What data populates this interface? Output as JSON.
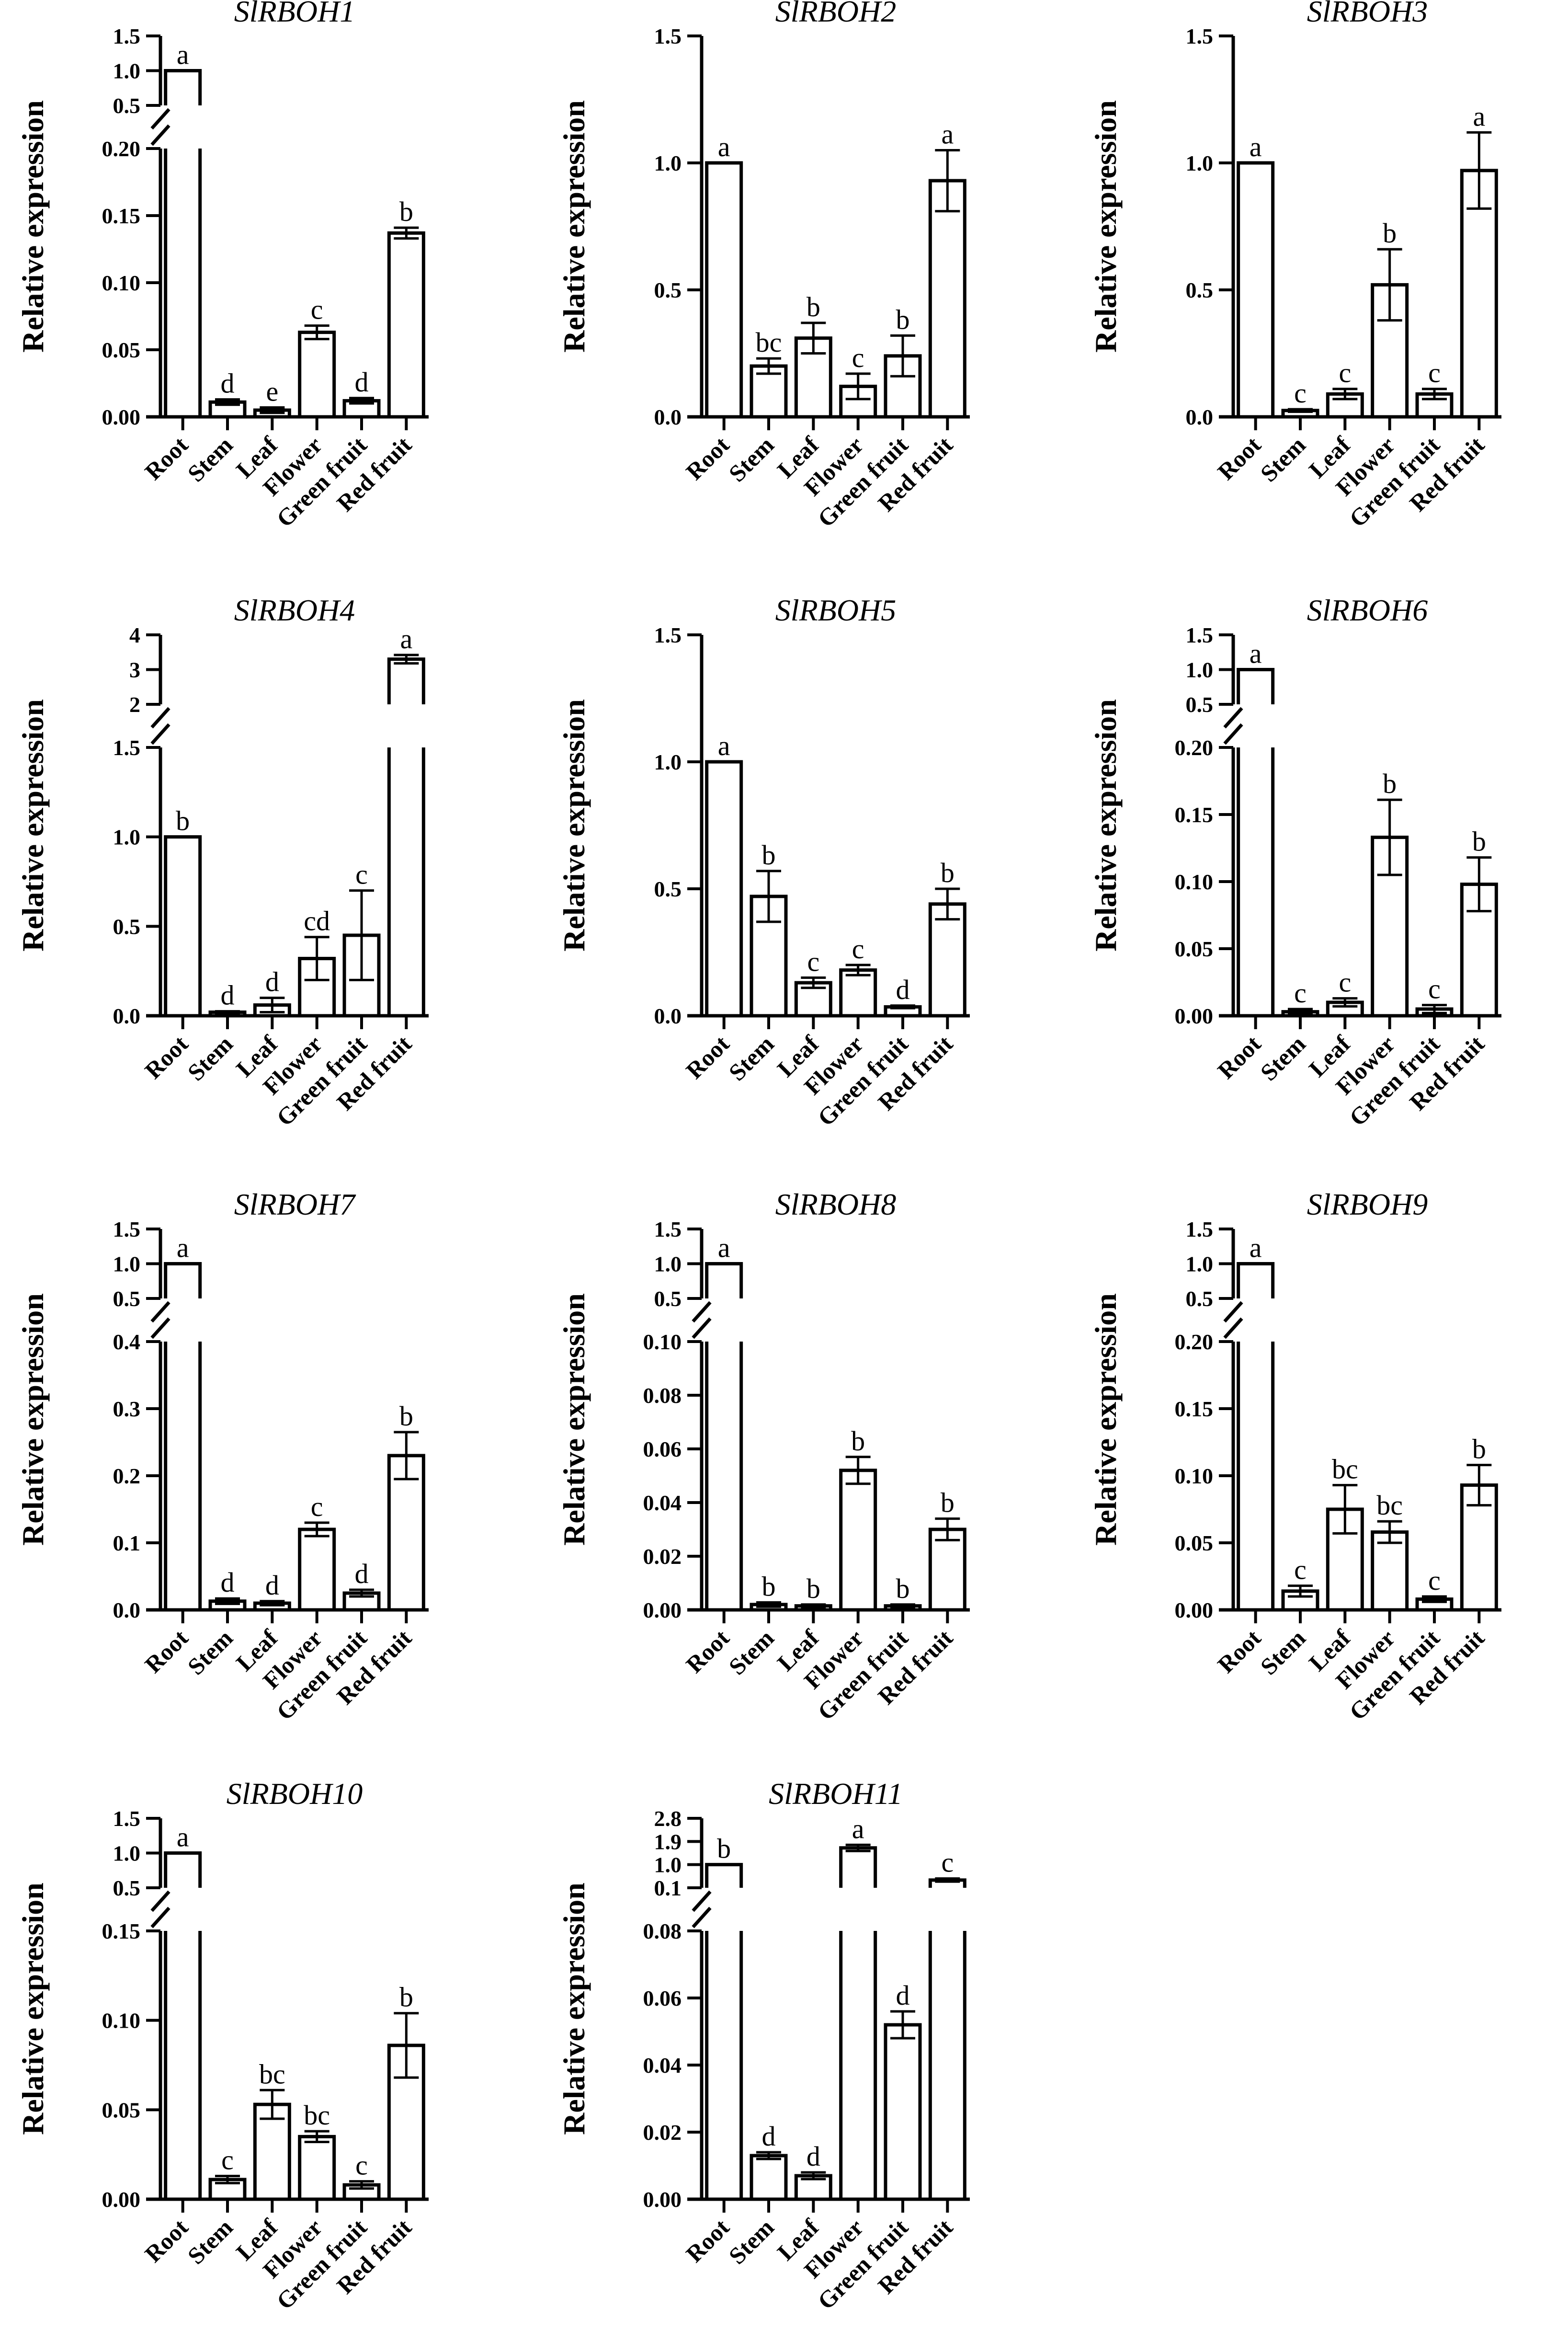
{
  "figure": {
    "ylabel": "Relative expression",
    "background": "#ffffff",
    "ink": "#000000"
  },
  "chart_data": [
    {
      "type": "bar",
      "title": "SlRBOH1",
      "ylabel": "Relative expression",
      "categories": [
        "Root",
        "Stem",
        "Leaf",
        "Flower",
        "Green fruit",
        "Red fruit"
      ],
      "values": [
        1.0,
        0.011,
        0.005,
        0.063,
        0.012,
        0.137
      ],
      "errors": [
        0.0,
        0.002,
        0.002,
        0.005,
        0.002,
        0.004
      ],
      "letters": [
        "a",
        "d",
        "e",
        "c",
        "d",
        "b"
      ],
      "axis_break": true,
      "lower": {
        "ylim": [
          0,
          0.2
        ],
        "ticks": [
          "0.00",
          "0.05",
          "0.10",
          "0.15",
          "0.20"
        ]
      },
      "upper": {
        "ylim": [
          0.5,
          1.5
        ],
        "ticks": [
          "0.5",
          "1.0",
          "1.5"
        ]
      }
    },
    {
      "type": "bar",
      "title": "SlRBOH2",
      "ylabel": "Relative expression",
      "categories": [
        "Root",
        "Stem",
        "Leaf",
        "Flower",
        "Green fruit",
        "Red fruit"
      ],
      "values": [
        1.0,
        0.2,
        0.31,
        0.12,
        0.24,
        0.93
      ],
      "errors": [
        0.0,
        0.03,
        0.06,
        0.05,
        0.08,
        0.12
      ],
      "letters": [
        "a",
        "bc",
        "b",
        "c",
        "b",
        "a"
      ],
      "axis_break": false,
      "ylim": [
        0,
        1.5
      ],
      "ticks": [
        "0.0",
        "0.5",
        "1.0",
        "1.5"
      ]
    },
    {
      "type": "bar",
      "title": "SlRBOH3",
      "ylabel": "Relative expression",
      "categories": [
        "Root",
        "Stem",
        "Leaf",
        "Flower",
        "Green fruit",
        "Red fruit"
      ],
      "values": [
        1.0,
        0.025,
        0.09,
        0.52,
        0.09,
        0.97
      ],
      "errors": [
        0.0,
        0.005,
        0.02,
        0.14,
        0.02,
        0.15
      ],
      "letters": [
        "a",
        "c",
        "c",
        "b",
        "c",
        "a"
      ],
      "axis_break": false,
      "ylim": [
        0,
        1.5
      ],
      "ticks": [
        "0.0",
        "0.5",
        "1.0",
        "1.5"
      ]
    },
    {
      "type": "bar",
      "title": "SlRBOH4",
      "ylabel": "Relative expression",
      "categories": [
        "Root",
        "Stem",
        "Leaf",
        "Flower",
        "Green fruit",
        "Red fruit"
      ],
      "values": [
        1.0,
        0.02,
        0.06,
        0.32,
        0.45,
        3.3
      ],
      "errors": [
        0.0,
        0.005,
        0.04,
        0.12,
        0.25,
        0.12
      ],
      "letters": [
        "b",
        "d",
        "d",
        "cd",
        "c",
        "a"
      ],
      "axis_break": true,
      "lower": {
        "ylim": [
          0,
          1.5
        ],
        "ticks": [
          "0.0",
          "0.5",
          "1.0",
          "1.5"
        ]
      },
      "upper": {
        "ylim": [
          2,
          4
        ],
        "ticks": [
          "2",
          "3",
          "4"
        ]
      }
    },
    {
      "type": "bar",
      "title": "SlRBOH5",
      "ylabel": "Relative expression",
      "categories": [
        "Root",
        "Stem",
        "Leaf",
        "Flower",
        "Green fruit",
        "Red fruit"
      ],
      "values": [
        1.0,
        0.47,
        0.13,
        0.18,
        0.035,
        0.44
      ],
      "errors": [
        0.0,
        0.1,
        0.02,
        0.02,
        0.005,
        0.06
      ],
      "letters": [
        "a",
        "b",
        "c",
        "c",
        "d",
        "b"
      ],
      "axis_break": false,
      "ylim": [
        0,
        1.5
      ],
      "ticks": [
        "0.0",
        "0.5",
        "1.0",
        "1.5"
      ]
    },
    {
      "type": "bar",
      "title": "SlRBOH6",
      "ylabel": "Relative expression",
      "categories": [
        "Root",
        "Stem",
        "Leaf",
        "Flower",
        "Green fruit",
        "Red fruit"
      ],
      "values": [
        1.0,
        0.003,
        0.01,
        0.133,
        0.005,
        0.098
      ],
      "errors": [
        0.0,
        0.002,
        0.003,
        0.028,
        0.003,
        0.02
      ],
      "letters": [
        "a",
        "c",
        "c",
        "b",
        "c",
        "b"
      ],
      "axis_break": true,
      "lower": {
        "ylim": [
          0,
          0.2
        ],
        "ticks": [
          "0.00",
          "0.05",
          "0.10",
          "0.15",
          "0.20"
        ]
      },
      "upper": {
        "ylim": [
          0.5,
          1.5
        ],
        "ticks": [
          "0.5",
          "1.0",
          "1.5"
        ]
      }
    },
    {
      "type": "bar",
      "title": "SlRBOH7",
      "ylabel": "Relative expression",
      "categories": [
        "Root",
        "Stem",
        "Leaf",
        "Flower",
        "Green fruit",
        "Red fruit"
      ],
      "values": [
        1.0,
        0.013,
        0.01,
        0.12,
        0.025,
        0.23
      ],
      "errors": [
        0.0,
        0.004,
        0.003,
        0.01,
        0.005,
        0.035
      ],
      "letters": [
        "a",
        "d",
        "d",
        "c",
        "d",
        "b"
      ],
      "axis_break": true,
      "lower": {
        "ylim": [
          0,
          0.4
        ],
        "ticks": [
          "0.0",
          "0.1",
          "0.2",
          "0.3",
          "0.4"
        ]
      },
      "upper": {
        "ylim": [
          0.5,
          1.5
        ],
        "ticks": [
          "0.5",
          "1.0",
          "1.5"
        ]
      }
    },
    {
      "type": "bar",
      "title": "SlRBOH8",
      "ylabel": "Relative expression",
      "categories": [
        "Root",
        "Stem",
        "Leaf",
        "Flower",
        "Green fruit",
        "Red fruit"
      ],
      "values": [
        1.0,
        0.002,
        0.0015,
        0.052,
        0.0015,
        0.03
      ],
      "errors": [
        0.0,
        0.0008,
        0.0005,
        0.005,
        0.0005,
        0.004
      ],
      "letters": [
        "a",
        "b",
        "b",
        "b",
        "b",
        "b"
      ],
      "axis_break": true,
      "lower": {
        "ylim": [
          0,
          0.1
        ],
        "ticks": [
          "0.00",
          "0.02",
          "0.04",
          "0.06",
          "0.08",
          "0.10"
        ]
      },
      "upper": {
        "ylim": [
          0.5,
          1.5
        ],
        "ticks": [
          "0.5",
          "1.0",
          "1.5"
        ]
      }
    },
    {
      "type": "bar",
      "title": "SlRBOH9",
      "ylabel": "Relative expression",
      "categories": [
        "Root",
        "Stem",
        "Leaf",
        "Flower",
        "Green fruit",
        "Red fruit"
      ],
      "values": [
        1.0,
        0.014,
        0.075,
        0.058,
        0.008,
        0.093
      ],
      "errors": [
        0.0,
        0.004,
        0.018,
        0.008,
        0.002,
        0.015
      ],
      "letters": [
        "a",
        "c",
        "bc",
        "bc",
        "c",
        "b"
      ],
      "axis_break": true,
      "lower": {
        "ylim": [
          0,
          0.2
        ],
        "ticks": [
          "0.00",
          "0.05",
          "0.10",
          "0.15",
          "0.20"
        ]
      },
      "upper": {
        "ylim": [
          0.5,
          1.5
        ],
        "ticks": [
          "0.5",
          "1.0",
          "1.5"
        ]
      }
    },
    {
      "type": "bar",
      "title": "SlRBOH10",
      "ylabel": "Relative expression",
      "categories": [
        "Root",
        "Stem",
        "Leaf",
        "Flower",
        "Green fruit",
        "Red fruit"
      ],
      "values": [
        1.0,
        0.011,
        0.053,
        0.035,
        0.008,
        0.086
      ],
      "errors": [
        0.0,
        0.002,
        0.008,
        0.003,
        0.002,
        0.018
      ],
      "letters": [
        "a",
        "c",
        "bc",
        "bc",
        "c",
        "b"
      ],
      "axis_break": true,
      "lower": {
        "ylim": [
          0,
          0.15
        ],
        "ticks": [
          "0.00",
          "0.05",
          "0.10",
          "0.15"
        ]
      },
      "upper": {
        "ylim": [
          0.5,
          1.5
        ],
        "ticks": [
          "0.5",
          "1.0",
          "1.5"
        ]
      }
    },
    {
      "type": "bar",
      "title": "SlRBOH11",
      "ylabel": "Relative expression",
      "categories": [
        "Root",
        "Stem",
        "Leaf",
        "Flower",
        "Green fruit",
        "Red fruit"
      ],
      "values": [
        1.0,
        0.013,
        0.007,
        1.65,
        0.052,
        0.4
      ],
      "errors": [
        0.0,
        0.001,
        0.001,
        0.12,
        0.004,
        0.06
      ],
      "letters": [
        "b",
        "d",
        "d",
        "a",
        "d",
        "c"
      ],
      "axis_break": true,
      "lower": {
        "ylim": [
          0,
          0.08
        ],
        "ticks": [
          "0.00",
          "0.02",
          "0.04",
          "0.06",
          "0.08"
        ]
      },
      "upper": {
        "ylim": [
          0.1,
          2.8
        ],
        "ticks": [
          "0.1",
          "1.0",
          "1.9",
          "2.8"
        ]
      }
    }
  ]
}
